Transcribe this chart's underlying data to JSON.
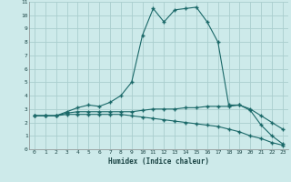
{
  "xlabel": "Humidex (Indice chaleur)",
  "background_color": "#cdeaea",
  "grid_color": "#aacece",
  "line_color": "#1a6868",
  "xlim": [
    -0.5,
    23.5
  ],
  "ylim": [
    0,
    11
  ],
  "xticks": [
    0,
    1,
    2,
    3,
    4,
    5,
    6,
    7,
    8,
    9,
    10,
    11,
    12,
    13,
    14,
    15,
    16,
    17,
    18,
    19,
    20,
    21,
    22,
    23
  ],
  "yticks": [
    0,
    1,
    2,
    3,
    4,
    5,
    6,
    7,
    8,
    9,
    10,
    11
  ],
  "line1_x": [
    0,
    1,
    2,
    3,
    4,
    5,
    6,
    7,
    8,
    9,
    10,
    11,
    12,
    13,
    14,
    15,
    16,
    17,
    18,
    19,
    20,
    21,
    22,
    23
  ],
  "line1_y": [
    2.5,
    2.5,
    2.5,
    2.8,
    3.1,
    3.3,
    3.2,
    3.5,
    4.0,
    5.0,
    8.5,
    10.5,
    9.5,
    10.4,
    10.5,
    10.6,
    9.5,
    8.0,
    3.3,
    3.3,
    2.9,
    1.8,
    1.0,
    0.4
  ],
  "line2_x": [
    0,
    1,
    2,
    3,
    4,
    5,
    6,
    7,
    8,
    9,
    10,
    11,
    12,
    13,
    14,
    15,
    16,
    17,
    18,
    19,
    20,
    21,
    22,
    23
  ],
  "line2_y": [
    2.5,
    2.5,
    2.5,
    2.7,
    2.8,
    2.8,
    2.8,
    2.8,
    2.8,
    2.8,
    2.9,
    3.0,
    3.0,
    3.0,
    3.1,
    3.1,
    3.2,
    3.2,
    3.2,
    3.3,
    3.0,
    2.5,
    2.0,
    1.5
  ],
  "line3_x": [
    0,
    1,
    2,
    3,
    4,
    5,
    6,
    7,
    8,
    9,
    10,
    11,
    12,
    13,
    14,
    15,
    16,
    17,
    18,
    19,
    20,
    21,
    22,
    23
  ],
  "line3_y": [
    2.5,
    2.5,
    2.5,
    2.6,
    2.6,
    2.6,
    2.6,
    2.6,
    2.6,
    2.5,
    2.4,
    2.3,
    2.2,
    2.1,
    2.0,
    1.9,
    1.8,
    1.7,
    1.5,
    1.3,
    1.0,
    0.8,
    0.5,
    0.3
  ]
}
